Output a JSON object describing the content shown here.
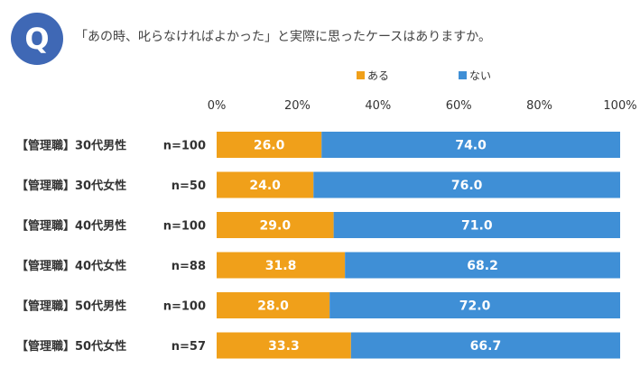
{
  "badge": {
    "letter": "Q"
  },
  "question": "「あの時、叱らなければよかった」と実際に思ったケースはありますか。",
  "colors": {
    "badge": "#3f68b5",
    "aru": "#f0a01a",
    "nai": "#3f8fd6"
  },
  "chart_data": {
    "type": "bar",
    "orientation": "horizontal",
    "stacked": true,
    "title": "「あの時、叱らなければよかった」と実際に思ったケースはありますか。",
    "xlabel": "",
    "ylabel": "",
    "xlim": [
      0,
      100
    ],
    "x_ticks": [
      "0%",
      "20%",
      "40%",
      "60%",
      "80%",
      "100%"
    ],
    "legend_position": "top",
    "categories": [
      "【管理職】30代男性",
      "【管理職】30代女性",
      "【管理職】40代男性",
      "【管理職】40代女性",
      "【管理職】50代男性",
      "【管理職】50代女性"
    ],
    "n_labels": [
      "n=100",
      "n=50",
      "n=100",
      "n=88",
      "n=100",
      "n=57"
    ],
    "series": [
      {
        "name": "ある",
        "color": "#f0a01a",
        "values": [
          26.0,
          24.0,
          29.0,
          31.8,
          28.0,
          33.3
        ]
      },
      {
        "name": "ない",
        "color": "#3f8fd6",
        "values": [
          74.0,
          76.0,
          71.0,
          68.2,
          72.0,
          66.7
        ]
      }
    ]
  }
}
